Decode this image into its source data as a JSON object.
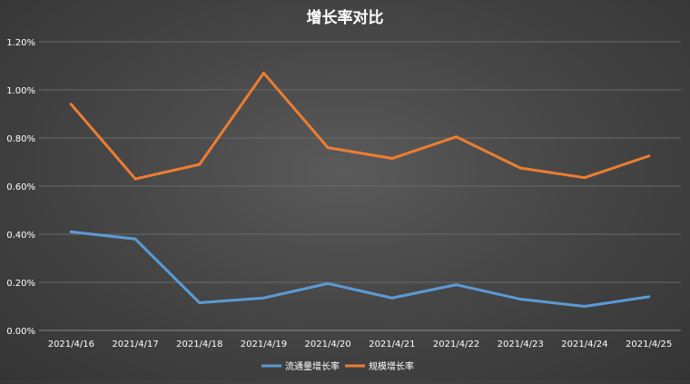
{
  "chart_data": {
    "type": "line",
    "title": "增长率对比",
    "categories": [
      "2021/4/16",
      "2021/4/17",
      "2021/4/18",
      "2021/4/19",
      "2021/4/20",
      "2021/4/21",
      "2021/4/22",
      "2021/4/23",
      "2021/4/24",
      "2021/4/25"
    ],
    "y_ticks": [
      "0.00%",
      "0.20%",
      "0.40%",
      "0.60%",
      "0.80%",
      "1.00%",
      "1.20%"
    ],
    "ylim": [
      0,
      1.2
    ],
    "y_unit": "%",
    "grid": true,
    "legend_position": "bottom",
    "series": [
      {
        "name": "流通量增长率",
        "color": "#5b9bd5",
        "values": [
          0.41,
          0.38,
          0.115,
          0.135,
          0.195,
          0.135,
          0.19,
          0.13,
          0.1,
          0.14
        ]
      },
      {
        "name": "规模增长率",
        "color": "#ed7d31",
        "values": [
          0.94,
          0.63,
          0.69,
          1.07,
          0.76,
          0.715,
          0.805,
          0.675,
          0.635,
          0.725
        ]
      }
    ]
  }
}
